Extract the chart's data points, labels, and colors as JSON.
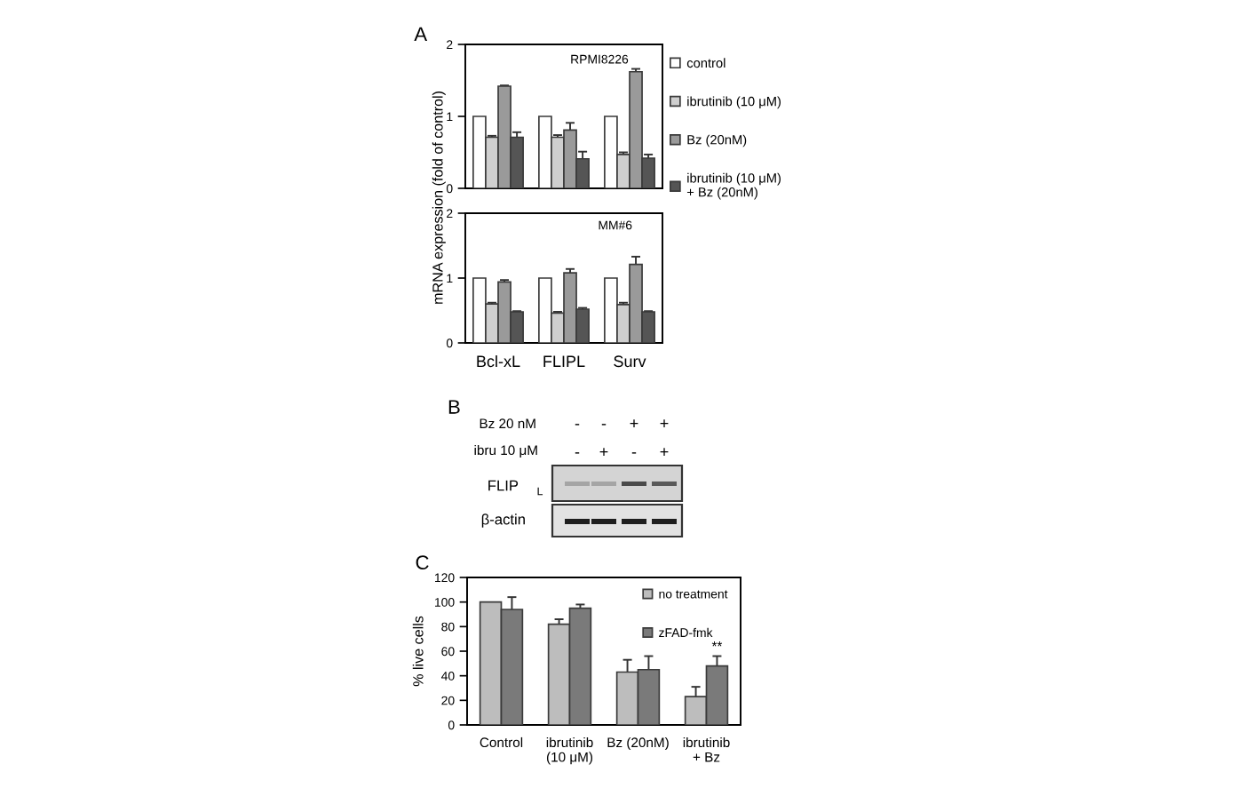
{
  "chart_data": [
    {
      "type": "bar",
      "categories": [
        "Bcl-xL",
        "FLIPL",
        "Surv"
      ],
      "series": [
        {
          "name": "control",
          "color": "#ffffff",
          "values": [
            1,
            1,
            1
          ]
        },
        {
          "name": "ibrutinib (10 μM)",
          "color": "#cfcfcf",
          "values": [
            0.71,
            0.71,
            0.47
          ],
          "errors": [
            0.02,
            0.03,
            0.03
          ]
        },
        {
          "name": "Bz (20nM)",
          "color": "#9a9a9a",
          "values": [
            1.42,
            0.81,
            1.62
          ],
          "errors": [
            0.01,
            0.1,
            0.04
          ]
        },
        {
          "name": "ibrutinib (10 μM)\n+ Bz (20nM)",
          "color": "#555555",
          "values": [
            0.71,
            0.41,
            0.42
          ],
          "errors": [
            0.07,
            0.1,
            0.05
          ]
        }
      ],
      "ylim": [
        0,
        2
      ],
      "yticks": [
        0,
        1,
        2
      ],
      "tick_labels": "y",
      "legend": "right",
      "annotations": [
        "A",
        "RPMI8226"
      ]
    },
    {
      "type": "bar",
      "categories": [
        "Bcl-xL",
        "FLIPL",
        "Surv"
      ],
      "series": [
        {
          "color": "#ffffff",
          "values": [
            1,
            1,
            1
          ]
        },
        {
          "color": "#cfcfcf",
          "values": [
            0.6,
            0.46,
            0.59
          ],
          "errors": [
            0.02,
            0.02,
            0.03
          ]
        },
        {
          "color": "#9a9a9a",
          "values": [
            0.94,
            1.08,
            1.21
          ],
          "errors": [
            0.03,
            0.06,
            0.12
          ]
        },
        {
          "color": "#555555",
          "values": [
            0.48,
            0.52,
            0.48
          ],
          "errors": [
            0.01,
            0.02,
            0.01
          ]
        }
      ],
      "ylim": [
        0,
        2
      ],
      "yticks": [
        0,
        1,
        2
      ],
      "ylabel": "mRNA expression (fold of control)",
      "annotations": [
        "MM#6"
      ]
    },
    {
      "type": "other",
      "annotations": [
        "B",
        "Bz 20 nM",
        "-",
        "-",
        "+",
        "+",
        "ibru 10 μM",
        "-",
        "+",
        "-",
        "+",
        "FLIP",
        "L",
        "β-actin"
      ]
    },
    {
      "type": "bar",
      "categories": [
        "Control",
        "ibrutinib\n(10 μM)",
        "Bz (20nM)",
        "ibrutinib\n+ Bz"
      ],
      "series": [
        {
          "name": "no treatment",
          "color": "#bdbdbd",
          "values": [
            100,
            82,
            43,
            23
          ],
          "errors": [
            null,
            4,
            10,
            8
          ]
        },
        {
          "name": "zFAD-fmk",
          "color": "#7a7a7a",
          "values": [
            94,
            95,
            45,
            48
          ],
          "errors": [
            10,
            3,
            11,
            8
          ]
        }
      ],
      "ylim": [
        0,
        120
      ],
      "yticks": [
        0,
        20,
        40,
        60,
        80,
        100,
        120
      ],
      "ylabel": "% live cells",
      "legend": "top right",
      "annotations": [
        "C",
        {
          "text": "**",
          "x": "ibrutinib\n+ Bz",
          "y": 58
        }
      ]
    }
  ]
}
